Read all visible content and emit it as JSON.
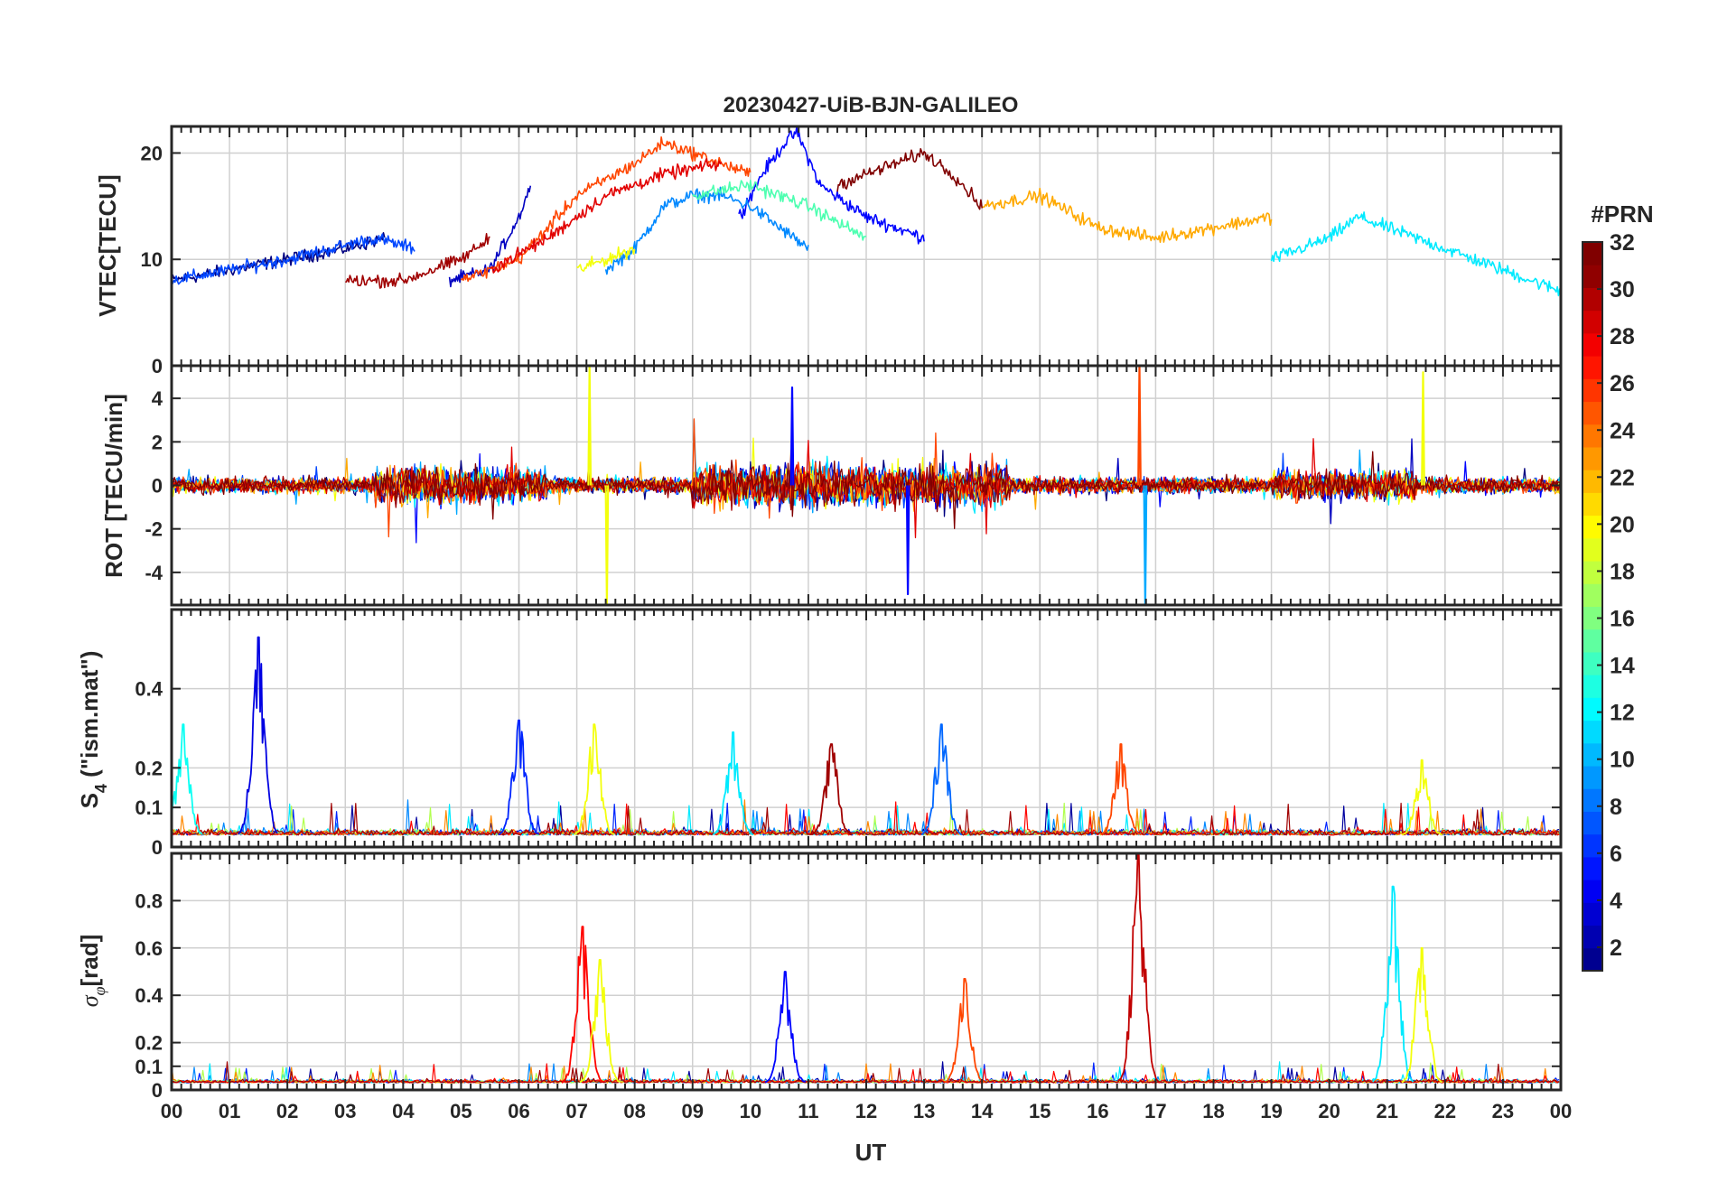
{
  "figure": {
    "title": "20230427-UiB-BJN-GALILEO",
    "xlabel": "UT",
    "x_ticks": [
      "00",
      "01",
      "02",
      "03",
      "04",
      "05",
      "06",
      "07",
      "08",
      "09",
      "10",
      "11",
      "12",
      "13",
      "14",
      "15",
      "16",
      "17",
      "18",
      "19",
      "20",
      "21",
      "22",
      "23",
      "00"
    ],
    "colorbar": {
      "label": "#PRN",
      "range": [
        1,
        32
      ],
      "ticks": [
        2,
        4,
        6,
        8,
        10,
        12,
        14,
        16,
        18,
        20,
        22,
        24,
        26,
        28,
        30,
        32
      ],
      "tick_labels": [
        "2",
        "4",
        "6",
        "8",
        "10",
        "12",
        "14",
        "16",
        "18",
        "20",
        "22",
        "24",
        "26",
        "28",
        "30",
        "32"
      ],
      "colormap": "jet",
      "colors": [
        "#00008f",
        "#0000ff",
        "#00ffff",
        "#ffff00",
        "#ff0000",
        "#800000"
      ]
    }
  },
  "chart_data": [
    {
      "type": "line",
      "panel": "vtec",
      "ylabel": "VTEC[TECU]",
      "ylim": [
        0,
        22.5
      ],
      "yticks": [
        0,
        10,
        20
      ],
      "ytick_labels": [
        "0",
        "10",
        "20"
      ],
      "xlim": [
        0,
        24
      ],
      "grid": true,
      "series": [
        {
          "prn": 1,
          "x": [
            0,
            1,
            2,
            3,
            3.7
          ],
          "y": [
            8,
            9,
            10,
            11,
            12
          ]
        },
        {
          "prn": 3,
          "x": [
            4.8,
            5.5,
            6,
            6.2
          ],
          "y": [
            8,
            9,
            14,
            17
          ]
        },
        {
          "prn": 5,
          "x": [
            9.8,
            10.2,
            10.6,
            10.8,
            11.2,
            12,
            13
          ],
          "y": [
            14,
            18,
            21,
            22,
            17,
            14,
            12
          ]
        },
        {
          "prn": 7,
          "x": [
            0,
            2,
            3.5,
            4.2
          ],
          "y": [
            8,
            10,
            12,
            11
          ]
        },
        {
          "prn": 9,
          "x": [
            7.5,
            8,
            8.5,
            9,
            9.5,
            10,
            11
          ],
          "y": [
            9,
            11,
            15,
            16,
            16,
            15,
            11
          ]
        },
        {
          "prn": 12,
          "x": [
            19,
            20,
            20.5,
            21,
            22,
            23,
            24
          ],
          "y": [
            10,
            12,
            14,
            13,
            11,
            9,
            7
          ]
        },
        {
          "prn": 15,
          "x": [
            9,
            10,
            10.5,
            11,
            12
          ],
          "y": [
            16,
            17,
            16,
            15,
            12
          ]
        },
        {
          "prn": 20,
          "x": [
            7,
            7.5,
            8
          ],
          "y": [
            9,
            10,
            11
          ]
        },
        {
          "prn": 23,
          "x": [
            14,
            15,
            16,
            17,
            18,
            19
          ],
          "y": [
            15,
            16,
            13,
            12,
            13,
            14
          ]
        },
        {
          "prn": 26,
          "x": [
            5,
            6,
            7,
            8,
            8.5,
            9,
            10
          ],
          "y": [
            8,
            10,
            16,
            19,
            21,
            20,
            18
          ]
        },
        {
          "prn": 29,
          "x": [
            5.5,
            6.5,
            7.5,
            8.5,
            9.5
          ],
          "y": [
            9,
            12,
            16,
            18,
            19
          ]
        },
        {
          "prn": 31,
          "x": [
            3,
            4,
            5,
            5.5
          ],
          "y": [
            8,
            8,
            10,
            12
          ]
        },
        {
          "prn": 32,
          "x": [
            11.5,
            12.5,
            13,
            13.5,
            14
          ],
          "y": [
            17,
            19,
            20,
            18,
            15
          ]
        }
      ]
    },
    {
      "type": "line",
      "panel": "rot",
      "ylabel": "ROT [TECU/min]",
      "ylim": [
        -5.5,
        5.5
      ],
      "yticks": [
        -4,
        -2,
        0,
        2,
        4
      ],
      "ytick_labels": [
        "-4",
        "-2",
        "0",
        "2",
        "4"
      ],
      "xlim": [
        0,
        24
      ],
      "grid": true,
      "spikes": [
        {
          "prn": 20,
          "x": [
            7.2,
            7.5
          ],
          "peaks": [
            5.5,
            -5.5
          ]
        },
        {
          "prn": 5,
          "x": [
            10.7,
            12.7
          ],
          "peaks": [
            4.5,
            -5
          ]
        },
        {
          "prn": 26,
          "x": [
            16.7
          ],
          "peaks": [
            5.5
          ]
        },
        {
          "prn": 10,
          "x": [
            16.8
          ],
          "peaks": [
            -5.5
          ]
        },
        {
          "prn": 20,
          "x": [
            21.6
          ],
          "peaks": [
            5.2
          ]
        }
      ]
    },
    {
      "type": "line",
      "panel": "s4",
      "ylabel": "S4 (\"ism.mat\")",
      "ylim": [
        0,
        0.6
      ],
      "yticks": [
        0,
        0.1,
        0.2,
        0.4
      ],
      "ytick_labels": [
        "0",
        "0.1",
        "0.2",
        "0.4"
      ],
      "xlim": [
        0,
        24
      ],
      "grid": true,
      "peaks": [
        {
          "prn": 4,
          "x": 1.5,
          "y": 0.53
        },
        {
          "prn": 13,
          "x": 0.2,
          "y": 0.31
        },
        {
          "prn": 6,
          "x": 6.0,
          "y": 0.32
        },
        {
          "prn": 20,
          "x": 7.3,
          "y": 0.31
        },
        {
          "prn": 12,
          "x": 9.7,
          "y": 0.29
        },
        {
          "prn": 31,
          "x": 11.4,
          "y": 0.26
        },
        {
          "prn": 8,
          "x": 13.3,
          "y": 0.31
        },
        {
          "prn": 26,
          "x": 16.4,
          "y": 0.26
        },
        {
          "prn": 20,
          "x": 21.6,
          "y": 0.22
        }
      ]
    },
    {
      "type": "line",
      "panel": "sigma_phi",
      "ylabel": "σφ[rad]",
      "ylim": [
        0,
        1.0
      ],
      "yticks": [
        0,
        0.1,
        0.2,
        0.4,
        0.6,
        0.8
      ],
      "ytick_labels": [
        "0",
        "0.1",
        "0.2",
        "0.4",
        "0.6",
        "0.8"
      ],
      "xlim": [
        0,
        24
      ],
      "grid": true,
      "peaks": [
        {
          "prn": 28,
          "x": 7.1,
          "y": 0.69
        },
        {
          "prn": 20,
          "x": 7.4,
          "y": 0.55
        },
        {
          "prn": 5,
          "x": 10.6,
          "y": 0.5
        },
        {
          "prn": 26,
          "x": 13.7,
          "y": 0.47
        },
        {
          "prn": 30,
          "x": 16.7,
          "y": 1.0
        },
        {
          "prn": 12,
          "x": 21.1,
          "y": 0.86
        },
        {
          "prn": 20,
          "x": 21.6,
          "y": 0.6
        }
      ]
    }
  ]
}
